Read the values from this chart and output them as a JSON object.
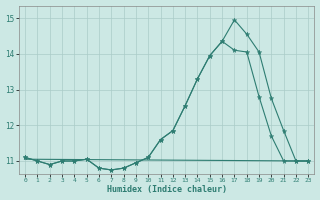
{
  "xlabel": "Humidex (Indice chaleur)",
  "ylabel": "",
  "background_color": "#cce8e4",
  "grid_color": "#aaccc8",
  "line_color": "#2e7d72",
  "xlim": [
    -0.5,
    23.5
  ],
  "ylim": [
    10.65,
    15.35
  ],
  "yticks": [
    11,
    12,
    13,
    14,
    15
  ],
  "xticks": [
    0,
    1,
    2,
    3,
    4,
    5,
    6,
    7,
    8,
    9,
    10,
    11,
    12,
    13,
    14,
    15,
    16,
    17,
    18,
    19,
    20,
    21,
    22,
    23
  ],
  "series1_x": [
    0,
    1,
    2,
    3,
    4,
    5,
    6,
    7,
    8,
    9,
    10,
    11,
    12,
    13,
    14,
    15,
    16,
    17,
    18,
    19,
    20,
    21,
    22,
    23
  ],
  "series1_y": [
    11.1,
    11.0,
    10.9,
    11.0,
    11.0,
    11.05,
    10.8,
    10.75,
    10.8,
    10.95,
    11.1,
    11.6,
    11.85,
    12.55,
    13.3,
    13.95,
    14.35,
    14.95,
    14.55,
    14.05,
    12.75,
    11.85,
    11.0,
    11.0
  ],
  "series2_x": [
    0,
    1,
    2,
    3,
    4,
    5,
    6,
    7,
    8,
    9,
    10,
    11,
    12,
    13,
    14,
    15,
    16,
    17,
    18,
    19,
    20,
    21,
    22,
    23
  ],
  "series2_y": [
    11.1,
    11.0,
    10.9,
    11.0,
    11.0,
    11.05,
    10.8,
    10.75,
    10.8,
    10.95,
    11.1,
    11.6,
    11.85,
    12.55,
    13.3,
    13.95,
    14.35,
    14.1,
    14.05,
    12.8,
    11.7,
    11.0,
    11.0,
    11.0
  ],
  "series3_x": [
    0,
    23
  ],
  "series3_y": [
    11.05,
    11.0
  ]
}
